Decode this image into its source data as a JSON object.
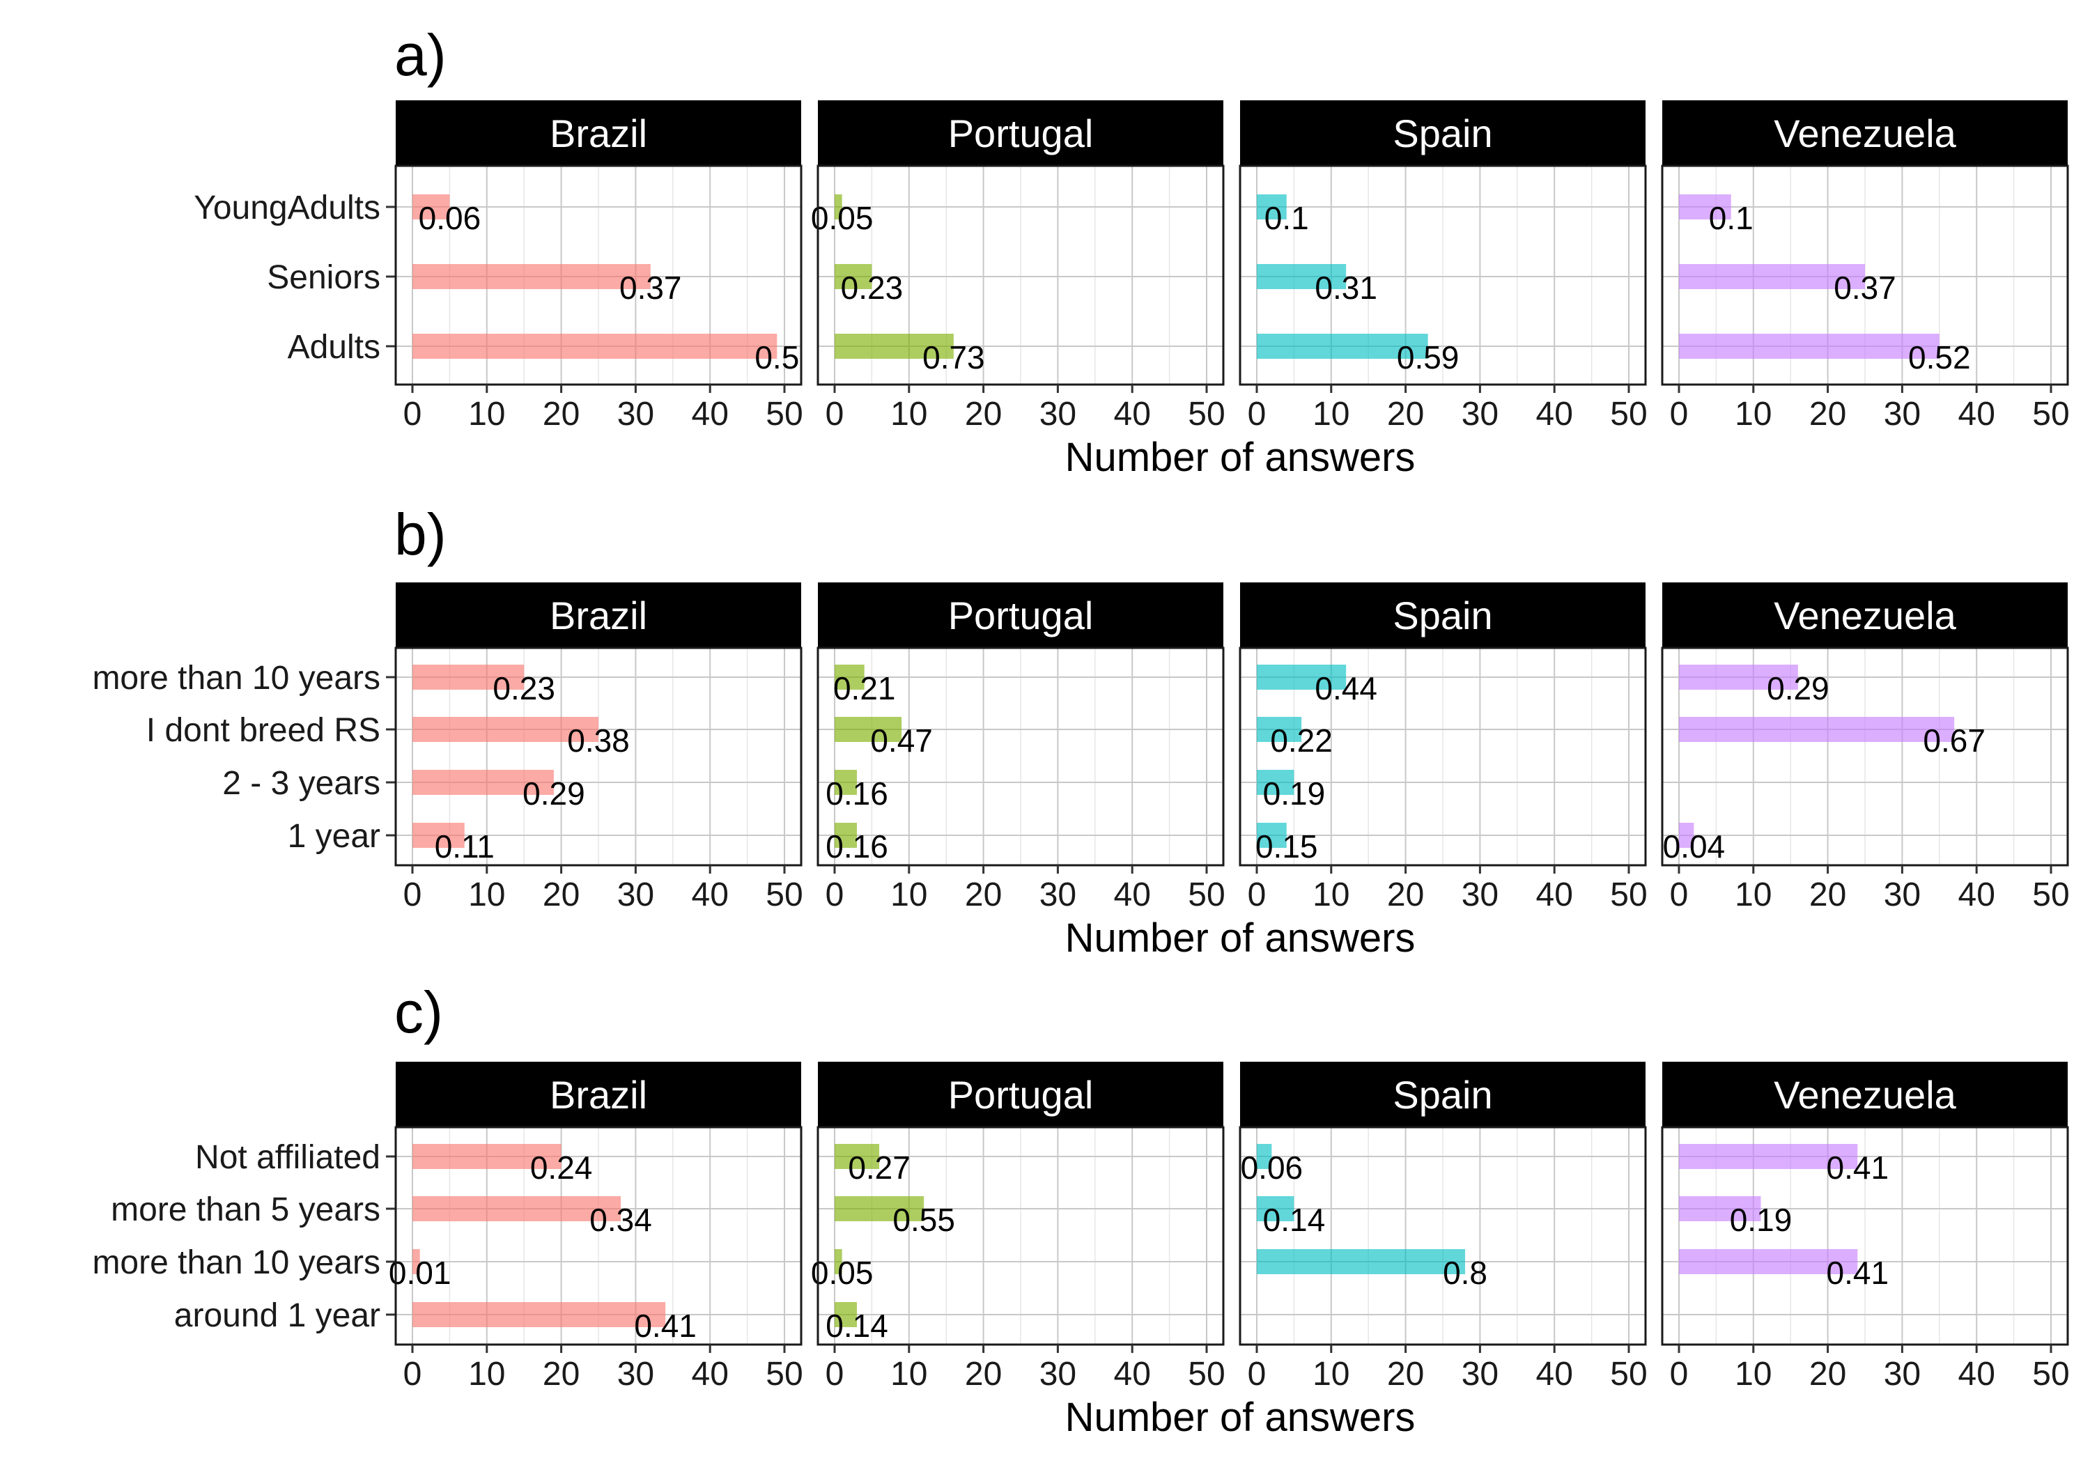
{
  "chart_data": {
    "type": "bar",
    "orientation": "horizontal",
    "xlabel": "Number of answers",
    "xlim": [
      0,
      50
    ],
    "x_ticks": [
      "0",
      "10",
      "20",
      "30",
      "40",
      "50"
    ],
    "grid": true,
    "facets": [
      "Brazil",
      "Portugal",
      "Spain",
      "Venezuela"
    ],
    "colors": {
      "Brazil": "#F8766D",
      "Portugal": "#7CAE00",
      "Spain": "#00BFC4",
      "Venezuela": "#C77CFF"
    },
    "panels": [
      {
        "tag": "a)",
        "categories": [
          "YoungAdults",
          "Seniors",
          "Adults"
        ],
        "series": [
          {
            "name": "Brazil",
            "values": [
              5,
              32,
              49
            ],
            "labels": [
              "0.06",
              "0.37",
              "0.5"
            ]
          },
          {
            "name": "Portugal",
            "values": [
              1,
              5,
              16
            ],
            "labels": [
              "0.05",
              "0.23",
              "0.73"
            ]
          },
          {
            "name": "Spain",
            "values": [
              4,
              12,
              23
            ],
            "labels": [
              "0.1",
              "0.31",
              "0.59"
            ]
          },
          {
            "name": "Venezuela",
            "values": [
              7,
              25,
              35
            ],
            "labels": [
              "0.1",
              "0.37",
              "0.52"
            ]
          }
        ]
      },
      {
        "tag": "b)",
        "categories": [
          "more than 10 years",
          "I dont breed RS",
          "2 - 3 years",
          "1 year"
        ],
        "series": [
          {
            "name": "Brazil",
            "values": [
              15,
              25,
              19,
              7
            ],
            "labels": [
              "0.23",
              "0.38",
              "0.29",
              "0.11"
            ]
          },
          {
            "name": "Portugal",
            "values": [
              4,
              9,
              3,
              3
            ],
            "labels": [
              "0.21",
              "0.47",
              "0.16",
              "0.16"
            ]
          },
          {
            "name": "Spain",
            "values": [
              12,
              6,
              5,
              4
            ],
            "labels": [
              "0.44",
              "0.22",
              "0.19",
              "0.15"
            ]
          },
          {
            "name": "Venezuela",
            "values": [
              16,
              37,
              0,
              2
            ],
            "labels": [
              "0.29",
              "0.67",
              "",
              "0.04"
            ]
          }
        ]
      },
      {
        "tag": "c)",
        "categories": [
          "Not affiliated",
          "more than 5 years",
          "more than 10 years",
          "around 1 year"
        ],
        "series": [
          {
            "name": "Brazil",
            "values": [
              20,
              28,
              1,
              34
            ],
            "labels": [
              "0.24",
              "0.34",
              "0.01",
              "0.41"
            ]
          },
          {
            "name": "Portugal",
            "values": [
              6,
              12,
              1,
              3
            ],
            "labels": [
              "0.27",
              "0.55",
              "0.05",
              "0.14"
            ]
          },
          {
            "name": "Spain",
            "values": [
              2,
              5,
              28,
              0
            ],
            "labels": [
              "0.06",
              "0.14",
              "0.8",
              ""
            ]
          },
          {
            "name": "Venezuela",
            "values": [
              24,
              11,
              24,
              0
            ],
            "labels": [
              "0.41",
              "0.19",
              "0.41",
              ""
            ]
          }
        ]
      }
    ]
  }
}
